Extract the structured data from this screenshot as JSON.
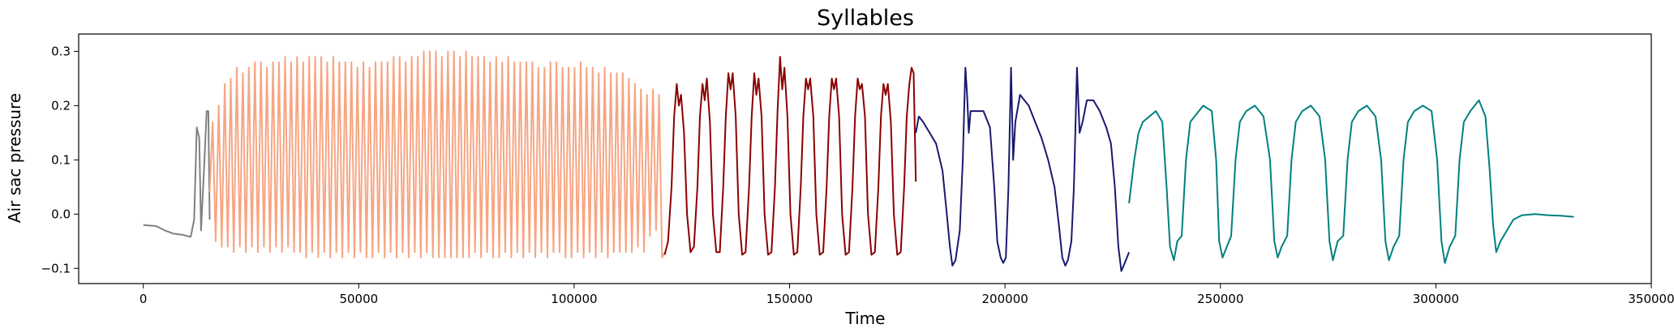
{
  "chart_data": {
    "type": "line",
    "title": "Syllables",
    "xlabel": "Time",
    "ylabel": "Air sac pressure",
    "xlim": [
      -15000,
      350000
    ],
    "ylim": [
      -0.128,
      0.332
    ],
    "grid": false,
    "legend": "none",
    "x_ticks": [
      0,
      50000,
      100000,
      150000,
      200000,
      250000,
      300000,
      350000
    ],
    "x_tick_labels": [
      "0",
      "50000",
      "100000",
      "150000",
      "200000",
      "250000",
      "300000",
      "350000"
    ],
    "y_ticks": [
      -0.1,
      0.0,
      0.1,
      0.2,
      0.3
    ],
    "y_tick_labels": [
      "−0.1",
      "0.0",
      "0.1",
      "0.2",
      "0.3"
    ],
    "series": [
      {
        "color": "#808080",
        "x": [
          0,
          3000,
          5000,
          7000,
          9000,
          11000,
          11800,
          12400,
          13000,
          13400,
          14200,
          14700,
          15100,
          15400
        ],
        "y": [
          -0.02,
          -0.022,
          -0.03,
          -0.036,
          -0.038,
          -0.042,
          -0.01,
          0.16,
          0.14,
          -0.03,
          0.1,
          0.19,
          0.19,
          -0.01
        ]
      },
      {
        "color": "#F7A582",
        "x": [
          15400,
          16100,
          16800,
          17500,
          18200,
          18900,
          19600,
          20300,
          21000,
          21700,
          22400,
          23100,
          23800,
          24500,
          25200,
          25900,
          26600,
          27300,
          28000,
          28700,
          29400,
          30100,
          30800,
          31500,
          32200,
          32900,
          33600,
          34300,
          35000,
          35700,
          36400,
          37100,
          37800,
          38500,
          39200,
          39900,
          40600,
          41300,
          42000,
          42700,
          43400,
          44100,
          44800,
          45500,
          46200,
          46900,
          47600,
          48300,
          49000,
          49700,
          50400,
          51100,
          51800,
          52500,
          53200,
          53900,
          54600,
          55300,
          56000,
          56700,
          57400,
          58100,
          58800,
          59500,
          60200,
          60900,
          61600,
          62300,
          63000,
          63700,
          64400,
          65100,
          65800,
          66500,
          67200,
          67900,
          68600,
          69300,
          70000,
          70700,
          71400,
          72100,
          72800,
          73500,
          74200,
          74900,
          75600,
          76300,
          77000,
          77700,
          78400,
          79100,
          79800,
          80500,
          81200,
          81900,
          82600,
          83300,
          84000,
          84700,
          85400,
          86100,
          86800,
          87500,
          88200,
          88900,
          89600,
          90300,
          91000,
          91700,
          92400,
          93100,
          93800,
          94500,
          95200,
          95900,
          96600,
          97300,
          98000,
          98700,
          99400,
          100100,
          100800,
          101500,
          102200,
          102900,
          103600,
          104300,
          105000,
          105700,
          106400,
          107100,
          107800,
          108500,
          109200,
          109900,
          110600,
          111300,
          112000,
          112700,
          113400,
          114100,
          114800,
          115500,
          116200,
          116900,
          117600,
          118300,
          119000,
          119700,
          120400,
          121000
        ],
        "y": [
          0.04,
          0.17,
          -0.05,
          0.2,
          -0.06,
          0.24,
          -0.06,
          0.25,
          -0.07,
          0.27,
          -0.06,
          0.26,
          -0.07,
          0.27,
          -0.06,
          0.28,
          -0.07,
          0.28,
          -0.06,
          0.27,
          -0.07,
          0.28,
          -0.06,
          0.28,
          -0.07,
          0.29,
          -0.06,
          0.28,
          -0.07,
          0.29,
          -0.07,
          0.28,
          -0.08,
          0.29,
          -0.07,
          0.29,
          -0.08,
          0.29,
          -0.07,
          0.28,
          -0.08,
          0.29,
          -0.07,
          0.28,
          -0.08,
          0.28,
          -0.07,
          0.28,
          -0.08,
          0.27,
          -0.07,
          0.28,
          -0.08,
          0.27,
          -0.08,
          0.28,
          -0.07,
          0.28,
          -0.08,
          0.28,
          -0.07,
          0.29,
          -0.08,
          0.29,
          -0.07,
          0.28,
          -0.08,
          0.29,
          -0.07,
          0.29,
          -0.08,
          0.3,
          -0.07,
          0.3,
          -0.08,
          0.3,
          -0.08,
          0.29,
          -0.08,
          0.3,
          -0.08,
          0.3,
          -0.08,
          0.29,
          -0.08,
          0.3,
          -0.08,
          0.29,
          -0.07,
          0.29,
          -0.08,
          0.29,
          -0.07,
          0.28,
          -0.08,
          0.29,
          -0.08,
          0.28,
          -0.07,
          0.29,
          -0.08,
          0.28,
          -0.07,
          0.28,
          -0.08,
          0.28,
          -0.07,
          0.28,
          -0.08,
          0.27,
          -0.07,
          0.27,
          -0.08,
          0.28,
          -0.07,
          0.28,
          -0.07,
          0.27,
          -0.08,
          0.27,
          -0.08,
          0.27,
          -0.07,
          0.28,
          -0.08,
          0.27,
          -0.07,
          0.27,
          -0.08,
          0.26,
          -0.07,
          0.27,
          -0.08,
          0.26,
          -0.07,
          0.26,
          -0.07,
          0.26,
          -0.07,
          0.25,
          -0.07,
          0.24,
          -0.06,
          0.23,
          -0.07,
          0.22,
          -0.04,
          0.23,
          -0.03,
          0.22,
          -0.08,
          -0.07
        ]
      },
      {
        "color": "#8B0000",
        "x": [
          121000,
          121800,
          122600,
          123200,
          123800,
          124300,
          124800,
          125500,
          126200,
          127000,
          127800,
          128600,
          129200,
          129800,
          130300,
          130800,
          131500,
          132200,
          133000,
          133800,
          134600,
          135200,
          135800,
          136300,
          136800,
          137500,
          138200,
          139000,
          139800,
          140600,
          141200,
          141800,
          142300,
          142800,
          143500,
          144200,
          145000,
          145800,
          146600,
          147200,
          147800,
          148300,
          148800,
          149500,
          150200,
          151000,
          151800,
          152600,
          153200,
          153800,
          154300,
          154800,
          155500,
          156200,
          157000,
          157800,
          158600,
          159200,
          159800,
          160300,
          160800,
          161500,
          162200,
          163000,
          163800,
          164600,
          165200,
          165800,
          166300,
          166800,
          167500,
          168200,
          169000,
          169800,
          170600,
          171200,
          171800,
          172300,
          172800,
          173500,
          174200,
          175000,
          175800,
          176600,
          177200,
          177800,
          178300,
          178800,
          179300
        ],
        "y": [
          -0.075,
          -0.05,
          0.05,
          0.18,
          0.24,
          0.2,
          0.22,
          0.15,
          0.0,
          -0.07,
          -0.06,
          0.05,
          0.18,
          0.24,
          0.21,
          0.25,
          0.17,
          0.0,
          -0.07,
          -0.07,
          0.05,
          0.18,
          0.26,
          0.23,
          0.26,
          0.18,
          0.0,
          -0.075,
          -0.07,
          0.05,
          0.18,
          0.26,
          0.22,
          0.25,
          0.18,
          0.0,
          -0.075,
          -0.07,
          0.05,
          0.19,
          0.29,
          0.23,
          0.27,
          0.18,
          0.0,
          -0.075,
          -0.07,
          0.05,
          0.18,
          0.25,
          0.23,
          0.25,
          0.18,
          0.0,
          -0.075,
          -0.07,
          0.05,
          0.18,
          0.25,
          0.23,
          0.25,
          0.18,
          0.0,
          -0.075,
          -0.07,
          0.05,
          0.18,
          0.25,
          0.23,
          0.24,
          0.18,
          0.0,
          -0.075,
          -0.07,
          0.05,
          0.18,
          0.24,
          0.22,
          0.24,
          0.17,
          0.0,
          -0.075,
          -0.07,
          0.05,
          0.18,
          0.24,
          0.27,
          0.26,
          0.06
        ]
      },
      {
        "color": "#191970",
        "x": [
          179300,
          180000,
          181000,
          182500,
          184000,
          185500,
          186500,
          187200,
          187800,
          188500,
          189500,
          190200,
          190800,
          191200,
          191600,
          192000,
          193500,
          195000,
          196500,
          197500,
          198200,
          199000,
          199600,
          200200,
          200800,
          201400,
          201900,
          202400,
          203500,
          204500,
          205500,
          207000,
          208500,
          210000,
          211500,
          212500,
          213300,
          214000,
          214600,
          215400,
          216000,
          216700,
          217300,
          218000,
          219000,
          220500,
          222000,
          223500,
          224600,
          225500,
          226300,
          227000,
          227800,
          228800
        ],
        "y": [
          0.15,
          0.18,
          0.17,
          0.15,
          0.13,
          0.08,
          0.0,
          -0.06,
          -0.095,
          -0.085,
          -0.03,
          0.1,
          0.27,
          0.22,
          0.15,
          0.19,
          0.19,
          0.19,
          0.16,
          0.05,
          -0.05,
          -0.08,
          -0.09,
          -0.08,
          0.05,
          0.27,
          0.1,
          0.17,
          0.22,
          0.21,
          0.2,
          0.17,
          0.14,
          0.1,
          0.05,
          -0.02,
          -0.08,
          -0.095,
          -0.085,
          -0.05,
          0.05,
          0.27,
          0.15,
          0.17,
          0.21,
          0.21,
          0.19,
          0.16,
          0.13,
          0.05,
          -0.06,
          -0.105,
          -0.09,
          -0.07
        ]
      },
      {
        "color": "#008080",
        "x": [
          228800,
          230000,
          231000,
          232000,
          233500,
          235000,
          236500,
          237500,
          238300,
          239200,
          240000,
          241000,
          242000,
          243000,
          244000,
          246000,
          248000,
          249000,
          249700,
          250500,
          251500,
          252500,
          253500,
          254500,
          256000,
          258000,
          260000,
          261500,
          262500,
          263300,
          264200,
          265500,
          266500,
          267500,
          269000,
          271000,
          273000,
          274300,
          275300,
          276100,
          277200,
          278500,
          279500,
          280500,
          282000,
          284000,
          286000,
          287300,
          288300,
          289100,
          290200,
          291500,
          292500,
          293500,
          295000,
          297000,
          299000,
          300300,
          301300,
          302100,
          303200,
          304500,
          305500,
          306500,
          308000,
          310000,
          311500,
          312500,
          313300,
          314000,
          315000,
          316500,
          318000,
          320000,
          323000,
          326000,
          329000,
          332000
        ],
        "y": [
          0.02,
          0.1,
          0.15,
          0.17,
          0.18,
          0.19,
          0.17,
          0.05,
          -0.06,
          -0.085,
          -0.05,
          -0.04,
          0.1,
          0.17,
          0.18,
          0.2,
          0.19,
          0.1,
          -0.05,
          -0.08,
          -0.06,
          -0.04,
          0.1,
          0.17,
          0.19,
          0.2,
          0.18,
          0.1,
          -0.05,
          -0.08,
          -0.06,
          -0.04,
          0.1,
          0.17,
          0.19,
          0.2,
          0.18,
          0.1,
          -0.05,
          -0.085,
          -0.05,
          -0.04,
          0.1,
          0.17,
          0.19,
          0.2,
          0.18,
          0.1,
          -0.05,
          -0.085,
          -0.06,
          -0.04,
          0.1,
          0.17,
          0.19,
          0.2,
          0.19,
          0.1,
          -0.05,
          -0.09,
          -0.06,
          -0.04,
          0.1,
          0.17,
          0.19,
          0.21,
          0.18,
          0.08,
          -0.02,
          -0.07,
          -0.05,
          -0.03,
          -0.01,
          -0.002,
          0.0,
          -0.002,
          -0.003,
          -0.005
        ]
      }
    ]
  }
}
